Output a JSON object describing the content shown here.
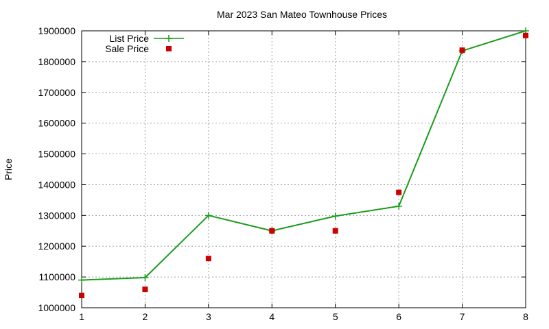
{
  "chart_data": {
    "type": "line",
    "title": "Mar 2023 San Mateo Townhouse Prices",
    "xlabel": "",
    "ylabel": "Price",
    "x": [
      1,
      2,
      3,
      4,
      5,
      6,
      7,
      8
    ],
    "xlim": [
      1,
      8
    ],
    "ylim": [
      1000000,
      1900000
    ],
    "xticks": [
      "1",
      "2",
      "3",
      "4",
      "5",
      "6",
      "7",
      "8"
    ],
    "yticks": [
      "1000000",
      "1100000",
      "1200000",
      "1300000",
      "1400000",
      "1500000",
      "1600000",
      "1700000",
      "1800000",
      "1900000"
    ],
    "grid": true,
    "legend_position": "top-left",
    "series": [
      {
        "name": "List Price",
        "style": "line+cross-markers",
        "color": "#1a9c1a",
        "values": [
          1090000,
          1098000,
          1300000,
          1250000,
          1298000,
          1330000,
          1835000,
          1900000
        ]
      },
      {
        "name": "Sale Price",
        "style": "square-markers",
        "color": "#cc0000",
        "values": [
          1040000,
          1060000,
          1160000,
          1250000,
          1250000,
          1375000,
          1837000,
          1885000
        ]
      }
    ]
  }
}
